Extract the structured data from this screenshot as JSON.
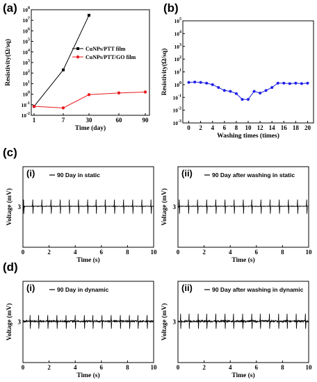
{
  "panel_labels": {
    "a": "(a)",
    "b": "(b)",
    "c": "(c)",
    "d": "(d)"
  },
  "colors": {
    "cu_ptt": "#000000",
    "cu_ptt_go": "#e8191b",
    "washing": "#1f1fe6",
    "ecg": "#000000"
  },
  "chart_data": [
    {
      "id": "a",
      "type": "line",
      "xlabel": "Time (day)",
      "ylabel": "Resistivity(Ω/sq)",
      "x_ticks": [
        1,
        7,
        30,
        60,
        90
      ],
      "y_scale": "log",
      "y_tick_exponents": [
        -2,
        -1,
        0,
        1,
        2,
        3,
        4,
        5,
        6,
        7,
        8
      ],
      "ylim": [
        0.01,
        100000000
      ],
      "legend_position": "top-right",
      "series": [
        {
          "name": "CuNPs/PTT film",
          "color": "#000000",
          "marker": "square",
          "x": [
            1,
            7,
            30
          ],
          "y": [
            0.07,
            200,
            30000000
          ]
        },
        {
          "name": "CuNPs/PTT/GO film",
          "color": "#e8191b",
          "marker": "circle",
          "x": [
            1,
            7,
            30,
            60,
            90
          ],
          "y": [
            0.07,
            0.05,
            0.9,
            1.3,
            1.6
          ]
        }
      ]
    },
    {
      "id": "b",
      "type": "line",
      "xlabel": "Washing times (times)",
      "ylabel": "Resistivity(Ω/sq)",
      "x_ticks": [
        0,
        2,
        4,
        6,
        8,
        10,
        12,
        14,
        16,
        18,
        20
      ],
      "xlim": [
        -1,
        21
      ],
      "y_scale": "log",
      "y_tick_exponents": [
        -3,
        -2,
        -1,
        0,
        1,
        2,
        3,
        4,
        5
      ],
      "ylim": [
        0.001,
        100000
      ],
      "series": [
        {
          "name": "",
          "color": "#1f1fe6",
          "marker": "circle",
          "x": [
            0,
            1,
            2,
            3,
            4,
            5,
            6,
            7,
            8,
            9,
            10,
            11,
            12,
            13,
            14,
            15,
            16,
            17,
            18,
            19,
            20
          ],
          "y": [
            1.5,
            1.6,
            1.5,
            1.3,
            1.0,
            0.6,
            0.35,
            0.3,
            0.2,
            0.07,
            0.07,
            0.3,
            0.22,
            0.35,
            0.6,
            1.3,
            1.3,
            1.2,
            1.3,
            1.2,
            1.3
          ]
        }
      ]
    },
    {
      "id": "c-i",
      "sub_label": "(i)",
      "type": "line",
      "legend": "90 Day in static",
      "xlabel": "Time (s)",
      "ylabel": "Voltage (mV)",
      "x_ticks": [
        0,
        2,
        4,
        6,
        8,
        10
      ],
      "xlim": [
        0,
        10
      ],
      "y_ticks": [
        3
      ],
      "ylim": [
        0,
        6
      ],
      "baseline_mv": 3.05,
      "beats_s": [
        0.05,
        0.75,
        1.45,
        2.15,
        2.85,
        3.55,
        4.25,
        4.95,
        5.6,
        6.3,
        7.0,
        7.7,
        8.4,
        9.1,
        9.8
      ],
      "spike_max_mv": 3.55,
      "spike_min_mv": 2.5,
      "noise_mv": 0.02
    },
    {
      "id": "c-ii",
      "sub_label": "(ii)",
      "type": "line",
      "legend": "90 Day after washing in static",
      "xlabel": "Time (s)",
      "ylabel": "Voltage (mV)",
      "x_ticks": [
        0,
        2,
        4,
        6,
        8,
        10
      ],
      "xlim": [
        0,
        10
      ],
      "y_ticks": [
        3
      ],
      "ylim": [
        0,
        6
      ],
      "baseline_mv": 3.05,
      "beats_s": [
        0.1,
        0.8,
        1.5,
        2.2,
        2.9,
        3.6,
        4.3,
        5.0,
        5.65,
        6.35,
        7.05,
        7.75,
        8.45,
        9.15,
        9.85
      ],
      "spike_max_mv": 3.55,
      "spike_min_mv": 2.5,
      "noise_mv": 0.02
    },
    {
      "id": "d-i",
      "sub_label": "(i)",
      "type": "line",
      "legend": "90 Day in dynamic",
      "xlabel": "Time (s)",
      "ylabel": "Voltage (mV)",
      "x_ticks": [
        0,
        2,
        4,
        6,
        8,
        10
      ],
      "xlim": [
        0,
        10
      ],
      "y_ticks": [
        3
      ],
      "ylim": [
        0,
        6
      ],
      "baseline_mv": 3.05,
      "beats_s": [
        0.55,
        1.2,
        1.9,
        2.6,
        3.3,
        4.0,
        4.7,
        5.35,
        6.05,
        6.75,
        7.45,
        8.15,
        8.8,
        9.5
      ],
      "spike_max_mv": 3.5,
      "spike_min_mv": 2.5,
      "noise_mv": 0.06
    },
    {
      "id": "d-ii",
      "sub_label": "(ii)",
      "type": "line",
      "legend": "90 Day after washing in dynamic",
      "xlabel": "Time (s)",
      "ylabel": "Voltage (mV)",
      "x_ticks": [
        0,
        2,
        4,
        6,
        8,
        10
      ],
      "xlim": [
        0,
        10
      ],
      "y_ticks": [
        3
      ],
      "ylim": [
        0,
        6
      ],
      "baseline_mv": 3.05,
      "beats_s": [
        0.2,
        0.85,
        1.55,
        2.2,
        2.9,
        3.6,
        4.25,
        4.95,
        5.65,
        6.3,
        7.0,
        7.7,
        8.35,
        9.05,
        9.75
      ],
      "spike_max_mv": 3.6,
      "spike_min_mv": 2.5,
      "noise_mv": 0.07
    }
  ]
}
